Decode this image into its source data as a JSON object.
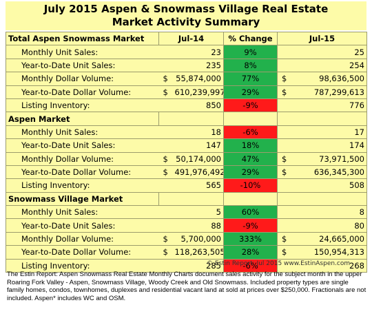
{
  "title": {
    "line1": "July 2015 Aspen & Snowmass Village Real Estate",
    "line2": "Market Activity Summary"
  },
  "colors": {
    "header_bg": "#fdfba8",
    "increase": "#22b14c",
    "decrease": "#ff1a1a"
  },
  "columns": {
    "market": "Total Aspen Snowmass Market",
    "prev": "Jul-14",
    "change": "% Change",
    "curr": "Jul-15"
  },
  "sections": [
    {
      "name": "Total Aspen Snowmass Market",
      "rows": [
        {
          "label": "Monthly Unit Sales:",
          "prev_dollar": "",
          "prev": "23",
          "change": "9%",
          "dir": "up",
          "curr_dollar": "",
          "curr": "25"
        },
        {
          "label": "Year-to-Date Unit Sales:",
          "prev_dollar": "",
          "prev": "235",
          "change": "8%",
          "dir": "up",
          "curr_dollar": "",
          "curr": "254"
        },
        {
          "label": "Monthly Dollar Volume:",
          "prev_dollar": "$",
          "prev": "55,874,000",
          "change": "77%",
          "dir": "up",
          "curr_dollar": "$",
          "curr": "98,636,500"
        },
        {
          "label": "Year-to-Date Dollar Volume:",
          "prev_dollar": "$",
          "prev": "610,239,997",
          "change": "29%",
          "dir": "up",
          "curr_dollar": "$",
          "curr": "787,299,613"
        },
        {
          "label": "Listing Inventory:",
          "prev_dollar": "",
          "prev": "850",
          "change": "-9%",
          "dir": "down",
          "curr_dollar": "",
          "curr": "776"
        }
      ]
    },
    {
      "name": "Aspen Market",
      "rows": [
        {
          "label": "Monthly Unit Sales:",
          "prev_dollar": "",
          "prev": "18",
          "change": "-6%",
          "dir": "down",
          "curr_dollar": "",
          "curr": "17"
        },
        {
          "label": "Year-to-Date Unit Sales:",
          "prev_dollar": "",
          "prev": "147",
          "change": "18%",
          "dir": "up",
          "curr_dollar": "",
          "curr": "174"
        },
        {
          "label": "Monthly Dollar Volume:",
          "prev_dollar": "$",
          "prev": "50,174,000",
          "change": "47%",
          "dir": "up",
          "curr_dollar": "$",
          "curr": "73,971,500"
        },
        {
          "label": "Year-to-Date Dollar Volume:",
          "prev_dollar": "$",
          "prev": "491,976,492",
          "change": "29%",
          "dir": "up",
          "curr_dollar": "$",
          "curr": "636,345,300"
        },
        {
          "label": "Listing Inventory:",
          "prev_dollar": "",
          "prev": "565",
          "change": "-10%",
          "dir": "down",
          "curr_dollar": "",
          "curr": "508"
        }
      ]
    },
    {
      "name": "Snowmass Village Market",
      "rows": [
        {
          "label": "Monthly Unit Sales:",
          "prev_dollar": "",
          "prev": "5",
          "change": "60%",
          "dir": "up",
          "curr_dollar": "",
          "curr": "8"
        },
        {
          "label": "Year-to-Date Unit Sales:",
          "prev_dollar": "",
          "prev": "88",
          "change": "-9%",
          "dir": "down",
          "curr_dollar": "",
          "curr": "80"
        },
        {
          "label": "Monthly Dollar Volume:",
          "prev_dollar": "$",
          "prev": "5,700,000",
          "change": "333%",
          "dir": "up",
          "curr_dollar": "$",
          "curr": "24,665,000"
        },
        {
          "label": "Year-to-Date Dollar Volume:",
          "prev_dollar": "$",
          "prev": "118,263,505",
          "change": "28%",
          "dir": "up",
          "curr_dollar": "$",
          "curr": "150,954,313"
        },
        {
          "label": "Listing Inventory:",
          "prev_dollar": "",
          "prev": "285",
          "change": "-6%",
          "dir": "down",
          "curr_dollar": "",
          "curr": "268"
        }
      ]
    }
  ],
  "credit": "© Estin Report: Jul 2015 www.EstinAspen.com",
  "footnote": "The Estin Report: Aspen Snowmass Real Estate Monthly Charts document sales activity for the subject month in the upper Roaring Fork Valley - Aspen, Snowmass Village, Woody Creek and Old Snowmass. Included property types are single family homes, condos, townhomes, duplexes and residential vacant land at sold at prices over $250,000. Fractionals are not included. Aspen* includes WC and OSM."
}
